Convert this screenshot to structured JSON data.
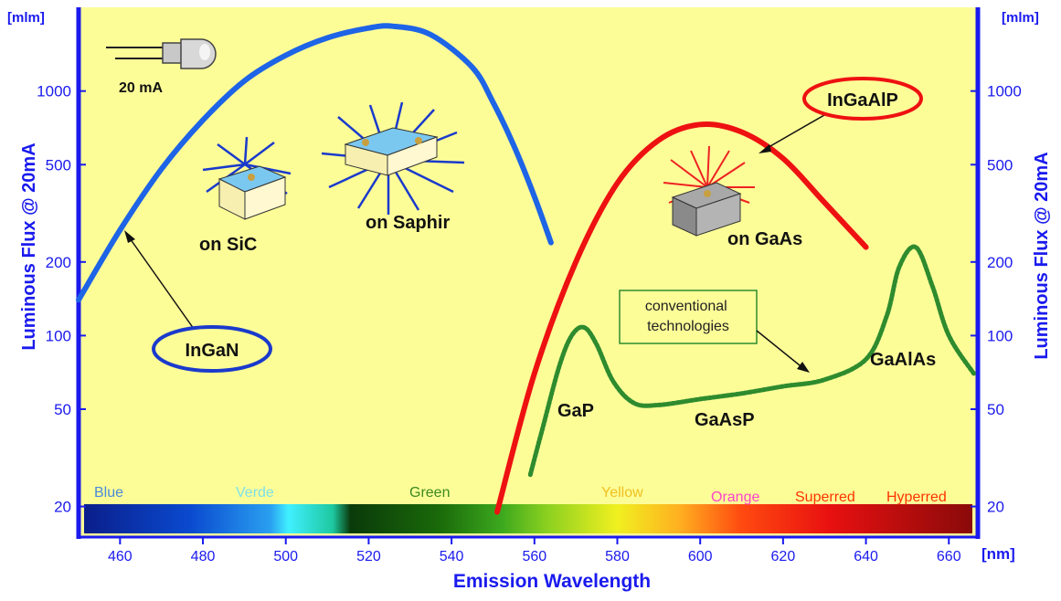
{
  "chart_data": {
    "type": "line",
    "xlabel": "Emission Wavelength",
    "x_unit": "[nm]",
    "ylabel_left": "Luminous Flux @ 20mA",
    "ylabel_right": "Luminous Flux @ 20mA",
    "y_unit_left": "[mlm]",
    "y_unit_right": "[mlm]",
    "xlim": [
      450,
      667
    ],
    "ylim": [
      15,
      2200
    ],
    "y_scale": "log",
    "x_ticks": [
      460,
      480,
      500,
      520,
      540,
      560,
      580,
      600,
      620,
      640,
      660
    ],
    "y_ticks": [
      20,
      50,
      100,
      200,
      500,
      1000
    ],
    "grid": false,
    "colors": {
      "plot_bg": "#fdfd98",
      "axis": "#1a1aee",
      "ingan": "#1e64e6",
      "ingaalp": "#ee1111",
      "conventional": "#2e8b2e"
    },
    "series": [
      {
        "name": "InGaN",
        "x": [
          450,
          460,
          470,
          480,
          490,
          500,
          510,
          520,
          526,
          535,
          545,
          550,
          555,
          560,
          564
        ],
        "y": [
          140,
          270,
          480,
          760,
          1100,
          1400,
          1650,
          1810,
          1840,
          1700,
          1250,
          900,
          600,
          370,
          240
        ]
      },
      {
        "name": "InGaAlP",
        "x": [
          551,
          560,
          570,
          580,
          590,
          600,
          610,
          620,
          630,
          640
        ],
        "y": [
          19,
          70,
          200,
          420,
          630,
          730,
          680,
          530,
          350,
          230
        ]
      },
      {
        "name": "conventional technologies",
        "x": [
          559,
          562,
          566,
          569,
          572,
          575,
          579,
          584,
          590,
          600,
          610,
          620,
          630,
          640,
          645,
          648,
          652,
          656,
          660,
          666
        ],
        "y": [
          27,
          42,
          75,
          100,
          108,
          92,
          65,
          53,
          52,
          55,
          58,
          62,
          66,
          80,
          120,
          190,
          230,
          160,
          100,
          70
        ]
      }
    ],
    "labels": {
      "current": "20 mA",
      "ingan": "InGaN",
      "ingaalp": "InGaAlP",
      "on_sic": "on SiC",
      "on_saphir": "on Saphir",
      "on_gaas": "on GaAs",
      "conventional": "conventional technologies",
      "gap": "GaP",
      "gaasp": "GaAsP",
      "gaalas": "GaAlAs"
    },
    "color_bands": [
      {
        "label": "Blue",
        "color": "#4a8ad8"
      },
      {
        "label": "Verde",
        "color": "#7ee0e8"
      },
      {
        "label": "Green",
        "color": "#3c8a1e"
      },
      {
        "label": "Yellow",
        "color": "#f0c020"
      },
      {
        "label": "Orange",
        "color": "#ff44cc"
      },
      {
        "label": "Superred",
        "color": "#ff3300"
      },
      {
        "label": "Hyperred",
        "color": "#ff3300"
      }
    ]
  }
}
